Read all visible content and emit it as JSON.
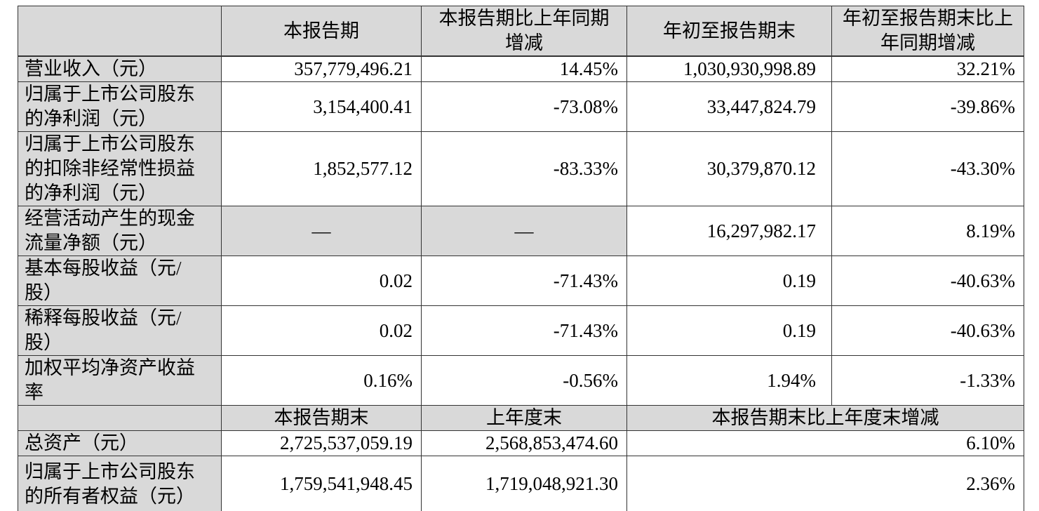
{
  "colors": {
    "header_bg": "#d9d9d9",
    "label_bg": "#d9d9d9",
    "cell_bg": "#ffffff",
    "border": "#333333",
    "text": "#000000"
  },
  "table": {
    "header_row_1": {
      "c0": "",
      "c1": "本报告期",
      "c2": "本报告期比上年同期增减",
      "c3": "年初至报告期末",
      "c4": "年初至报告期末比上年同期增减"
    },
    "section1_rows": [
      {
        "label": "营业收入（元）",
        "v1": "357,779,496.21",
        "v2": "14.45%",
        "v3": "1,030,930,998.89",
        "v4": "32.21%"
      },
      {
        "label": "归属于上市公司股东的净利润（元）",
        "v1": "3,154,400.41",
        "v2": "-73.08%",
        "v3": "33,447,824.79",
        "v4": "-39.86%"
      },
      {
        "label": "归属于上市公司股东的扣除非经常性损益的净利润（元）",
        "v1": "1,852,577.12",
        "v2": "-83.33%",
        "v3": "30,379,870.12",
        "v4": "-43.30%"
      },
      {
        "label": "经营活动产生的现金流量净额（元）",
        "v1": "—",
        "v2": "—",
        "v3": "16,297,982.17",
        "v4": "8.19%"
      },
      {
        "label": "基本每股收益（元/股）",
        "v1": "0.02",
        "v2": "-71.43%",
        "v3": "0.19",
        "v4": "-40.63%"
      },
      {
        "label": "稀释每股收益（元/股）",
        "v1": "0.02",
        "v2": "-71.43%",
        "v3": "0.19",
        "v4": "-40.63%"
      },
      {
        "label": "加权平均净资产收益率",
        "v1": "0.16%",
        "v2": "-0.56%",
        "v3": "1.94%",
        "v4": "-1.33%"
      }
    ],
    "header_row_2": {
      "c0": "",
      "c1": "本报告期末",
      "c2": "上年度末",
      "c34": "本报告期末比上年度末增减"
    },
    "section2_rows": [
      {
        "label": "总资产（元）",
        "v1": "2,725,537,059.19",
        "v2": "2,568,853,474.60",
        "v34": "6.10%"
      },
      {
        "label": "归属于上市公司股东的所有者权益（元）",
        "v1": "1,759,541,948.45",
        "v2": "1,719,048,921.30",
        "v34": "2.36%"
      }
    ]
  }
}
